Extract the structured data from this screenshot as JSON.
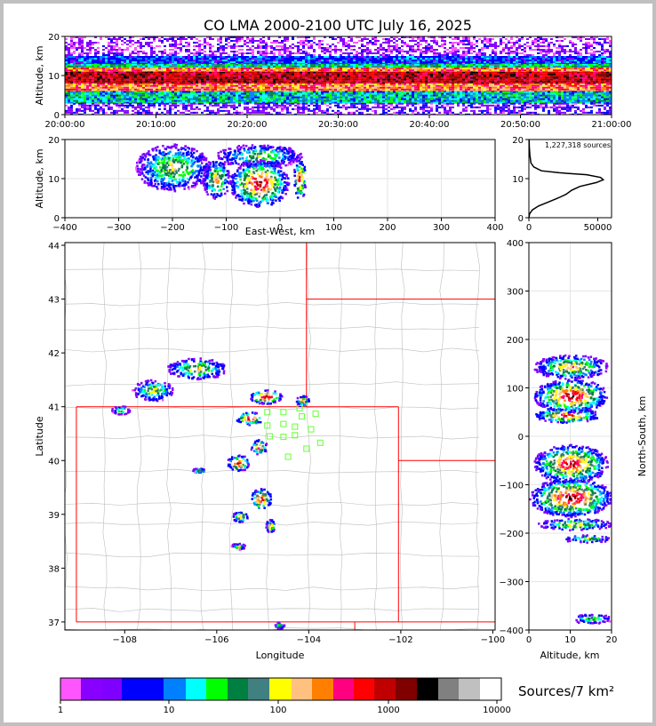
{
  "title": "CO LMA 2000-2100 UTC July 16, 2025",
  "chart_data": [
    {
      "id": "altitude-time",
      "type": "heatmap",
      "x": [
        "20:00:00",
        "20:10:00",
        "20:20:00",
        "20:30:00",
        "20:40:00",
        "20:50:00",
        "21:00:00"
      ],
      "xlim": [
        "20:00:00",
        "21:00:00"
      ],
      "ylabel": "Altitude, km",
      "yticks": [
        0,
        10,
        20
      ],
      "ylim": [
        0,
        20
      ],
      "core_altitude_km": [
        6,
        12
      ],
      "densest_core_altitude_km": [
        8,
        11
      ]
    },
    {
      "id": "altitude-east-west",
      "type": "heatmap",
      "xlabel": "East-West, km",
      "xticks": [
        -400,
        -300,
        -200,
        -100,
        0,
        100,
        200,
        300,
        400
      ],
      "xlim": [
        -400,
        400
      ],
      "ylabel": "Altitude, km",
      "yticks": [
        0,
        10,
        20
      ],
      "ylim": [
        0,
        20
      ],
      "blobs": [
        {
          "x": 35,
          "y": 10,
          "rx": 12,
          "ry": 5,
          "level": 7
        },
        {
          "x": -40,
          "y": 9,
          "rx": 55,
          "ry": 6,
          "level": 8
        },
        {
          "x": -120,
          "y": 10,
          "rx": 25,
          "ry": 5,
          "level": 4
        },
        {
          "x": -200,
          "y": 13,
          "rx": 70,
          "ry": 6,
          "level": 2
        },
        {
          "x": -40,
          "y": 16,
          "rx": 80,
          "ry": 3,
          "level": 1
        }
      ]
    },
    {
      "id": "altitude-histogram",
      "type": "line",
      "annotation": "1,227,318 sources",
      "xticks": [
        0,
        50000
      ],
      "xlim": [
        0,
        60000
      ],
      "yticks": [
        0,
        10,
        20
      ],
      "ylim": [
        0,
        20
      ],
      "points": [
        [
          0,
          0
        ],
        [
          500,
          1
        ],
        [
          2500,
          2
        ],
        [
          7000,
          3
        ],
        [
          14000,
          4
        ],
        [
          21000,
          5
        ],
        [
          27000,
          6
        ],
        [
          31000,
          7
        ],
        [
          37000,
          8
        ],
        [
          49000,
          9
        ],
        [
          54000,
          9.7
        ],
        [
          52000,
          10.3
        ],
        [
          42000,
          11
        ],
        [
          22000,
          11.5
        ],
        [
          9000,
          12
        ],
        [
          3500,
          13
        ],
        [
          1500,
          14
        ],
        [
          700,
          16
        ],
        [
          300,
          18
        ],
        [
          100,
          20
        ]
      ]
    },
    {
      "id": "plan-view",
      "type": "heatmap",
      "xlabel": "Longitude",
      "xticks": [
        -108,
        -106,
        -104,
        -102,
        -100
      ],
      "xlim": [
        -109.3,
        -99.95
      ],
      "ylabel": "Latitude",
      "yticks": [
        37,
        38,
        39,
        40,
        41,
        42,
        43,
        44
      ],
      "ylim": [
        36.85,
        44.05
      ],
      "blobs": [
        {
          "x": -106.45,
          "y": 41.72,
          "rx": 0.65,
          "ry": 0.2,
          "level": 3
        },
        {
          "x": -107.4,
          "y": 41.32,
          "rx": 0.45,
          "ry": 0.2,
          "level": 2
        },
        {
          "x": -108.1,
          "y": 40.95,
          "rx": 0.2,
          "ry": 0.08,
          "level": 1
        },
        {
          "x": -104.95,
          "y": 41.2,
          "rx": 0.35,
          "ry": 0.13,
          "level": 8
        },
        {
          "x": -104.15,
          "y": 41.12,
          "rx": 0.15,
          "ry": 0.1,
          "level": 5
        },
        {
          "x": -105.3,
          "y": 40.8,
          "rx": 0.3,
          "ry": 0.12,
          "level": 8
        },
        {
          "x": -105.1,
          "y": 40.27,
          "rx": 0.18,
          "ry": 0.14,
          "level": 6
        },
        {
          "x": -105.55,
          "y": 39.97,
          "rx": 0.25,
          "ry": 0.15,
          "level": 7
        },
        {
          "x": -106.4,
          "y": 39.83,
          "rx": 0.15,
          "ry": 0.04,
          "level": 2
        },
        {
          "x": -105.05,
          "y": 39.3,
          "rx": 0.22,
          "ry": 0.2,
          "level": 8
        },
        {
          "x": -105.5,
          "y": 38.97,
          "rx": 0.18,
          "ry": 0.1,
          "level": 4
        },
        {
          "x": -104.85,
          "y": 38.8,
          "rx": 0.1,
          "ry": 0.12,
          "level": 6
        },
        {
          "x": -105.55,
          "y": 38.42,
          "rx": 0.15,
          "ry": 0.06,
          "level": 2
        },
        {
          "x": -104.65,
          "y": 36.95,
          "rx": 0.1,
          "ry": 0.06,
          "level": 1
        }
      ],
      "stations": [
        [
          -104.9,
          40.9
        ],
        [
          -104.55,
          40.9
        ],
        [
          -104.2,
          40.97
        ],
        [
          -103.85,
          40.87
        ],
        [
          -104.15,
          40.82
        ],
        [
          -104.9,
          40.65
        ],
        [
          -104.55,
          40.68
        ],
        [
          -104.3,
          40.63
        ],
        [
          -104.85,
          40.45
        ],
        [
          -104.55,
          40.44
        ],
        [
          -104.3,
          40.47
        ],
        [
          -103.95,
          40.58
        ],
        [
          -103.75,
          40.33
        ],
        [
          -104.05,
          40.22
        ],
        [
          -104.45,
          40.07
        ]
      ]
    },
    {
      "id": "altitude-north-south",
      "type": "heatmap",
      "xlabel": "Altitude, km",
      "xticks": [
        0,
        10,
        20
      ],
      "xlim": [
        0,
        20
      ],
      "ylabel": "North-South, km",
      "yticks": [
        -400,
        -300,
        -200,
        -100,
        0,
        100,
        200,
        300,
        400
      ],
      "ylim": [
        -400,
        400
      ],
      "blobs": [
        {
          "x": 10,
          "y": 145,
          "rx": 9,
          "ry": 25,
          "level": 4
        },
        {
          "x": 10,
          "y": 85,
          "rx": 9,
          "ry": 35,
          "level": 8
        },
        {
          "x": 9,
          "y": 45,
          "rx": 8,
          "ry": 15,
          "level": 7
        },
        {
          "x": 10,
          "y": -55,
          "rx": 9,
          "ry": 40,
          "level": 7
        },
        {
          "x": 10,
          "y": -125,
          "rx": 10,
          "ry": 40,
          "level": 8
        },
        {
          "x": 11,
          "y": -180,
          "rx": 9,
          "ry": 12,
          "level": 3
        },
        {
          "x": 14,
          "y": -210,
          "rx": 6,
          "ry": 8,
          "level": 1
        },
        {
          "x": 15,
          "y": -375,
          "rx": 5,
          "ry": 10,
          "level": 1
        }
      ]
    }
  ],
  "colorbar": {
    "label": "Sources/7 km²",
    "ticks": [
      "1",
      "10",
      "100",
      "1000",
      "10000"
    ],
    "colors": [
      "#ff55ff",
      "#8800ff",
      "#8000ff",
      "#0000ff",
      "#0000ff",
      "#0080ff",
      "#00ffff",
      "#00ff00",
      "#008040",
      "#408080",
      "#ffff00",
      "#ffc080",
      "#ff8000",
      "#ff0080",
      "#ff0000",
      "#c00000",
      "#800000",
      "#000000",
      "#808080",
      "#c0c0c0",
      "#ffffff"
    ]
  }
}
